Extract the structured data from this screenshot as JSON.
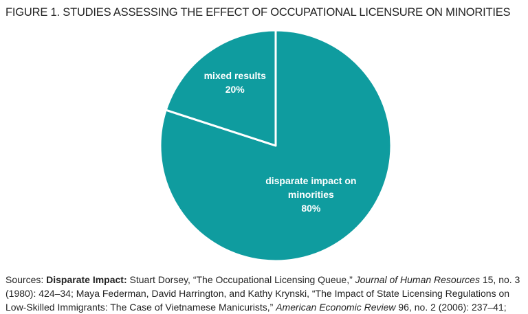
{
  "chart_data": {
    "type": "pie",
    "title": "FIGURE 1. STUDIES ASSESSING THE EFFECT OF OCCUPATIONAL LICENSURE ON MINORITIES",
    "categories": [
      "disparate impact on minorities",
      "mixed results"
    ],
    "values": [
      80,
      20
    ],
    "value_labels": [
      "80%",
      "20%"
    ],
    "colors": [
      "#0f9c9f",
      "#0f9c9f"
    ],
    "source": [
      "Sources: ",
      "Disparate Impact:",
      " Stuart Dorsey, “The Occupational Licensing Queue,” ",
      "Journal of Human Resources",
      " 15, no. 3 (1980): 424–34; Maya Federman, David Harrington, and Kathy Krynski, “The Impact of State Licensing Regulations on Low-Skilled Immigrants: The Case of Vietnamese Manicurists,” ",
      "American Economic Review",
      " 96, no. 2 (2006): 237–41;"
    ]
  }
}
